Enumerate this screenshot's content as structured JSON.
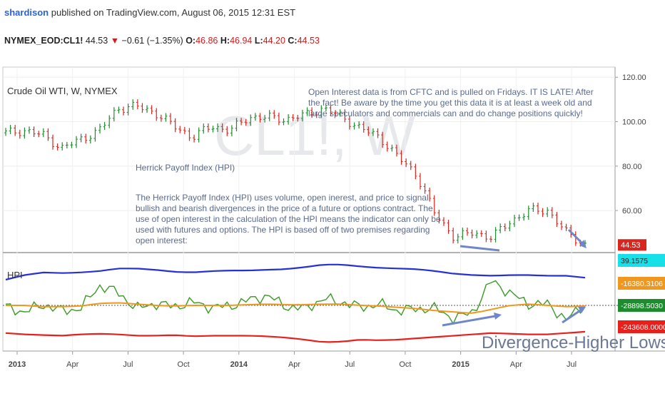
{
  "publisher": {
    "user": "shardison",
    "text": " published on TradingView.com, August 06, 2015 12:31 EST"
  },
  "quote": {
    "symbol": "NYMEX_EOD:CL1!",
    "last": "44.53",
    "arrow": "▼",
    "change": "−0.61 (−1.35%)",
    "o_label": "O:",
    "o_value": "46.86",
    "h_label": "H:",
    "h_value": "46.94",
    "l_label": "L:",
    "l_value": "44.20",
    "c_label": "C:",
    "c_value": "44.53"
  },
  "colors": {
    "price_up": "#1e8c2e",
    "price_down": "#d8261e",
    "hpi_blue": "#2630d6",
    "hpi_green": "#3a9a24",
    "hpi_orange": "#f0981e",
    "hpi_red": "#e8201c",
    "annotation": "#5a6b8c",
    "arrow": "#6f86c8"
  },
  "watermark": "CL1!, W",
  "annotations": {
    "oi_note": "Open Interest data is from CFTC and is pulled on Fridays. IT IS LATE! After the fact! Be aware by the time you get this data it is at least a week old and large speculators and commercials can and do change positions quickly!",
    "hpi_heading": "Herrick Payoff Index (HPI)",
    "hpi_body": "The Herrick Payoff Index (HPI) uses volume, open inerest, and price to signal bullish and bearish divergences in the price of a future or options contract. The use of open interest in the calculation of the HPI means the indicator can only be used with futures and options. The HPI is based off of two premises regarding open interest:",
    "divergence": "Divergence-Higher Lows"
  },
  "chart_data": [
    {
      "type": "line",
      "title": "Crude Oil WTI, W, NYMEX",
      "x_ticks": [
        "2013",
        "Apr",
        "Jul",
        "Oct",
        "2014",
        "Apr",
        "Jul",
        "Oct",
        "2015",
        "Apr",
        "Jul"
      ],
      "y_ticks": [
        "120.00",
        "100.00",
        "80.00",
        "60.00"
      ],
      "ylim": [
        43,
        122
      ],
      "last_value_label": "44.53",
      "series": [
        {
          "x": [
            "2013-01",
            "2013-02",
            "2013-03",
            "2013-04",
            "2013-05",
            "2013-06",
            "2013-07",
            "2013-08",
            "2013-09",
            "2013-10",
            "2013-11",
            "2013-12",
            "2014-01",
            "2014-02",
            "2014-03",
            "2014-04",
            "2014-05",
            "2014-06",
            "2014-07",
            "2014-08",
            "2014-09",
            "2014-10",
            "2014-11",
            "2014-12",
            "2015-01",
            "2015-02",
            "2015-03",
            "2015-04",
            "2015-05",
            "2015-06",
            "2015-07",
            "2015-08"
          ],
          "values": [
            95,
            96,
            94,
            88,
            92,
            96,
            106,
            107,
            104,
            98,
            93,
            98,
            96,
            102,
            102,
            101,
            103,
            106,
            102,
            97,
            93,
            84,
            76,
            58,
            48,
            50,
            48,
            55,
            60,
            60,
            50,
            44.5
          ]
        }
      ]
    },
    {
      "type": "line",
      "title": "HPI",
      "y_labels": [
        "39.1575",
        "-16380.3106",
        "-28898.5030",
        "-243608.0000"
      ],
      "series": [
        {
          "name": "",
          "values": [
            39,
            46,
            50,
            49,
            50,
            52,
            56,
            56,
            54,
            51,
            50,
            52,
            53,
            53,
            54,
            55,
            58,
            62,
            62,
            59,
            57,
            56,
            55,
            52,
            48,
            46,
            45,
            46,
            46,
            45,
            45,
            42
          ]
        },
        {
          "name": "",
          "values": [
            -2,
            -10,
            1,
            -8,
            -5,
            30,
            20,
            -5,
            3,
            -2,
            5,
            -3,
            -1,
            8,
            15,
            -2,
            -5,
            10,
            5,
            -3,
            2,
            -8,
            -5,
            -5,
            -20,
            -10,
            38,
            18,
            2,
            2,
            -22,
            2
          ]
        },
        {
          "name": "",
          "values": [
            0,
            0,
            -2,
            -2,
            -1,
            3,
            4,
            2,
            0,
            -1,
            0,
            0,
            0,
            1,
            2,
            1,
            1,
            2,
            2,
            0,
            -1,
            -3,
            -5,
            -8,
            -10,
            -12,
            -6,
            0,
            2,
            0,
            -2,
            -1
          ]
        },
        {
          "name": "",
          "values": [
            -42,
            -44,
            -45,
            -46,
            -44,
            -43,
            -44,
            -46,
            -46,
            -45,
            -47,
            -46,
            -46,
            -46,
            -47,
            -49,
            -52,
            -56,
            -55,
            -52,
            -53,
            -52,
            -50,
            -48,
            -46,
            -44,
            -42,
            -43,
            -44,
            -44,
            -42,
            -40
          ]
        }
      ]
    }
  ]
}
